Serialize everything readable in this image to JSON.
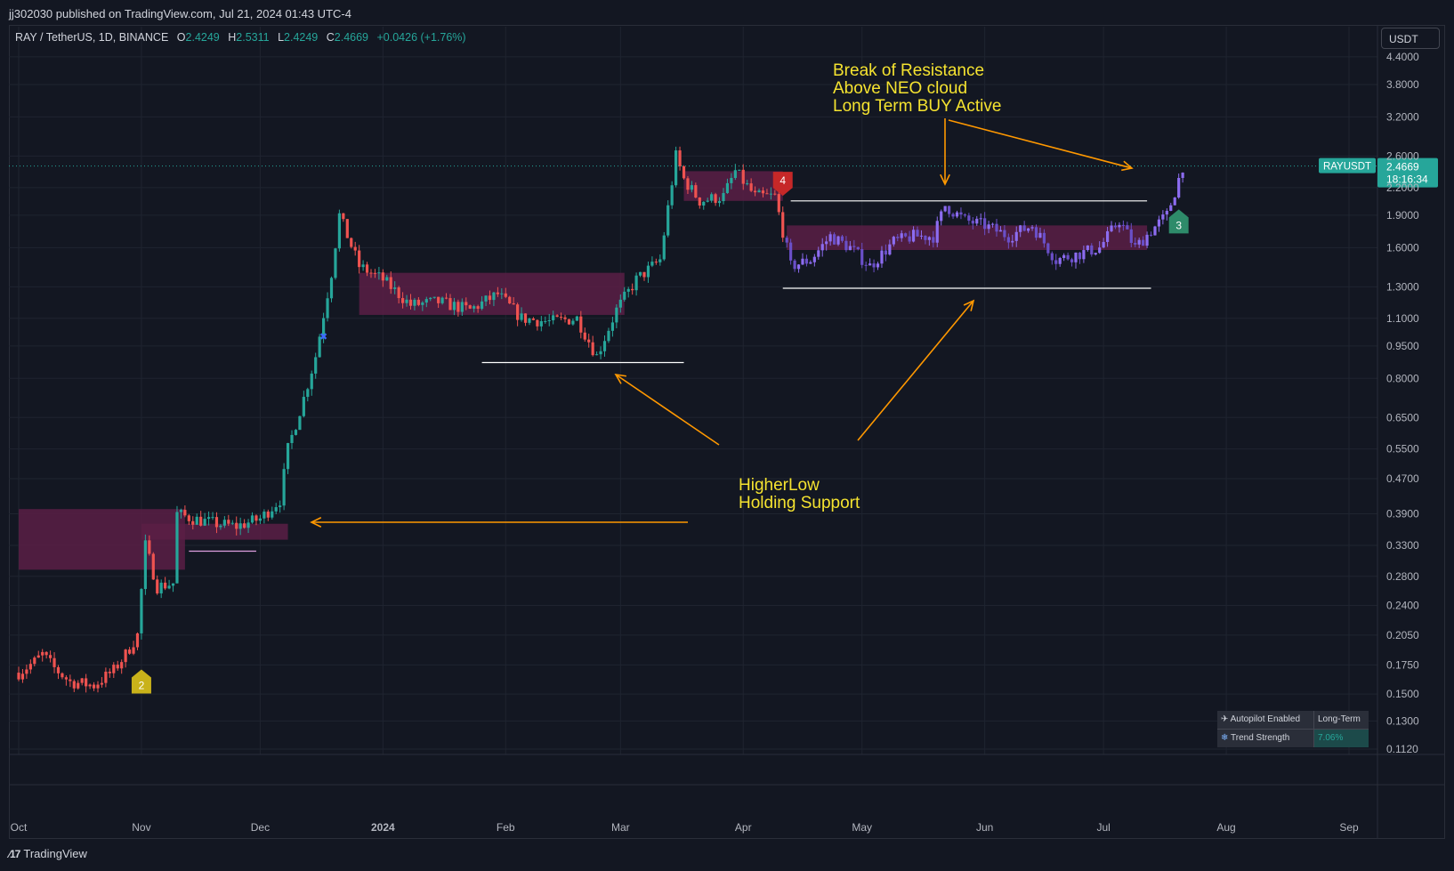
{
  "header": {
    "published": "jj302030 published on TradingView.com, Jul 21, 2024 01:43 UTC-4"
  },
  "legend": {
    "symbol": "RAY / TetherUS, 1D, BINANCE",
    "o_label": "O",
    "o": "2.4249",
    "h_label": "H",
    "h": "2.5311",
    "l_label": "L",
    "l": "2.4249",
    "c_label": "C",
    "c": "2.4669",
    "change": "+0.0426 (+1.76%)"
  },
  "currency": "USDT",
  "price_tag": {
    "symbol": "RAYUSDT",
    "price": "2.4669",
    "countdown": "18:16:34"
  },
  "colors": {
    "background": "#131722",
    "up": "#26a69a",
    "down": "#ef5350",
    "cloud": "#5a1f45",
    "purple": "#7b5cd6",
    "annotation": "#f5e330",
    "arrow": "#ff9800"
  },
  "annotations": {
    "resistance": [
      "Break of Resistance",
      "Above NEO cloud",
      "Long Term BUY Active"
    ],
    "support": [
      "HigherLow",
      "Holding Support"
    ]
  },
  "markers": {
    "sell": "4",
    "buy1": "2",
    "buy2": "3"
  },
  "panel": {
    "autopilot_label": "Autopilot Enabled",
    "autopilot_value": "Long-Term",
    "trend_label": "Trend Strength",
    "trend_value": "7.06%"
  },
  "footer": {
    "brand": "TradingView"
  },
  "chart_data": {
    "type": "line",
    "scale": "log",
    "y_ticks": [
      "4.4000",
      "3.8000",
      "3.2000",
      "2.6000",
      "2.2000",
      "1.9000",
      "1.6000",
      "1.3000",
      "1.1000",
      "0.9500",
      "0.8000",
      "0.6500",
      "0.5500",
      "0.4700",
      "0.3900",
      "0.3300",
      "0.2800",
      "0.2400",
      "0.2050",
      "0.1750",
      "0.1500",
      "0.1300",
      "0.1120"
    ],
    "x_ticks": [
      "Oct",
      "Nov",
      "Dec",
      "2024",
      "Feb",
      "Mar",
      "Apr",
      "May",
      "Jun",
      "Jul",
      "Aug",
      "Sep"
    ],
    "x_dates": [
      "2023-10-01",
      "2023-11-01",
      "2023-12-01",
      "2024-01-01",
      "2024-02-01",
      "2024-03-01",
      "2024-04-01",
      "2024-05-01",
      "2024-06-01",
      "2024-07-01",
      "2024-08-01",
      "2024-09-01"
    ],
    "series": [
      {
        "values": [
          {
            "x": "2023-10-01",
            "y": 0.168
          },
          {
            "x": "2023-10-05",
            "y": 0.178
          },
          {
            "x": "2023-10-07",
            "y": 0.185
          },
          {
            "x": "2023-10-10",
            "y": 0.172
          },
          {
            "x": "2023-10-14",
            "y": 0.16
          },
          {
            "x": "2023-10-20",
            "y": 0.157
          },
          {
            "x": "2023-10-25",
            "y": 0.17
          },
          {
            "x": "2023-10-28",
            "y": 0.185
          },
          {
            "x": "2023-10-31",
            "y": 0.205
          },
          {
            "x": "2023-11-02",
            "y": 0.33
          },
          {
            "x": "2023-11-05",
            "y": 0.265
          },
          {
            "x": "2023-11-09",
            "y": 0.27
          },
          {
            "x": "2023-11-10",
            "y": 0.39
          },
          {
            "x": "2023-11-14",
            "y": 0.38
          },
          {
            "x": "2023-11-20",
            "y": 0.37
          },
          {
            "x": "2023-11-25",
            "y": 0.365
          },
          {
            "x": "2023-12-01",
            "y": 0.38
          },
          {
            "x": "2023-12-06",
            "y": 0.42
          },
          {
            "x": "2023-12-08",
            "y": 0.55
          },
          {
            "x": "2023-12-12",
            "y": 0.72
          },
          {
            "x": "2023-12-15",
            "y": 0.9
          },
          {
            "x": "2023-12-19",
            "y": 1.4
          },
          {
            "x": "2023-12-21",
            "y": 1.9
          },
          {
            "x": "2023-12-26",
            "y": 1.45
          },
          {
            "x": "2024-01-01",
            "y": 1.35
          },
          {
            "x": "2024-01-08",
            "y": 1.18
          },
          {
            "x": "2024-01-15",
            "y": 1.2
          },
          {
            "x": "2024-01-23",
            "y": 1.15
          },
          {
            "x": "2024-01-30",
            "y": 1.25
          },
          {
            "x": "2024-02-05",
            "y": 1.1
          },
          {
            "x": "2024-02-12",
            "y": 1.08
          },
          {
            "x": "2024-02-19",
            "y": 1.1
          },
          {
            "x": "2024-02-24",
            "y": 0.9
          },
          {
            "x": "2024-02-29",
            "y": 1.15
          },
          {
            "x": "2024-03-05",
            "y": 1.35
          },
          {
            "x": "2024-03-11",
            "y": 1.5
          },
          {
            "x": "2024-03-15",
            "y": 2.6
          },
          {
            "x": "2024-03-17",
            "y": 2.3
          },
          {
            "x": "2024-03-21",
            "y": 2.05
          },
          {
            "x": "2024-03-27",
            "y": 2.1
          },
          {
            "x": "2024-03-30",
            "y": 2.4
          },
          {
            "x": "2024-04-04",
            "y": 2.1
          },
          {
            "x": "2024-04-09",
            "y": 2.1
          },
          {
            "x": "2024-04-13",
            "y": 1.45
          },
          {
            "x": "2024-04-18",
            "y": 1.5
          },
          {
            "x": "2024-04-23",
            "y": 1.7
          },
          {
            "x": "2024-04-28",
            "y": 1.6
          },
          {
            "x": "2024-05-03",
            "y": 1.45
          },
          {
            "x": "2024-05-09",
            "y": 1.65
          },
          {
            "x": "2024-05-14",
            "y": 1.7
          },
          {
            "x": "2024-05-19",
            "y": 1.7
          },
          {
            "x": "2024-05-22",
            "y": 2.0
          },
          {
            "x": "2024-05-27",
            "y": 1.85
          },
          {
            "x": "2024-06-01",
            "y": 1.8
          },
          {
            "x": "2024-06-07",
            "y": 1.7
          },
          {
            "x": "2024-06-13",
            "y": 1.8
          },
          {
            "x": "2024-06-19",
            "y": 1.5
          },
          {
            "x": "2024-06-25",
            "y": 1.55
          },
          {
            "x": "2024-06-30",
            "y": 1.6
          },
          {
            "x": "2024-07-05",
            "y": 1.85
          },
          {
            "x": "2024-07-09",
            "y": 1.6
          },
          {
            "x": "2024-07-13",
            "y": 1.75
          },
          {
            "x": "2024-07-17",
            "y": 1.9
          },
          {
            "x": "2024-07-19",
            "y": 2.15
          },
          {
            "x": "2024-07-21",
            "y": 2.4669
          }
        ]
      }
    ],
    "levels": [
      {
        "from": "2024-04-13",
        "to": "2024-07-12",
        "y": 2.05
      },
      {
        "from": "2024-04-11",
        "to": "2024-07-13",
        "y": 1.29
      },
      {
        "from": "2024-01-26",
        "to": "2024-03-17",
        "y": 0.87
      },
      {
        "from": "2023-11-13",
        "to": "2023-11-30",
        "y": 0.32
      }
    ],
    "last_price": 2.4669
  }
}
